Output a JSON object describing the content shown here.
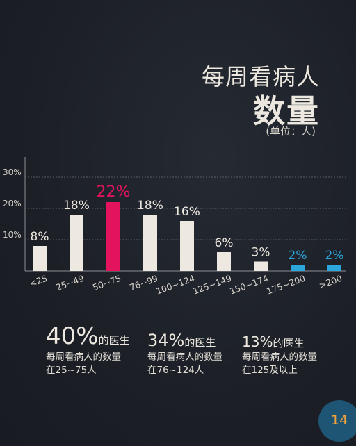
{
  "header": {
    "title_line1": "每周看病人",
    "title_line2": "数量",
    "unit": "(单位：人)"
  },
  "chart_data": {
    "type": "bar",
    "title": "每周看病人数量",
    "xlabel": "",
    "ylabel": "",
    "ylim": [
      0,
      30
    ],
    "yticks": [
      "10%",
      "20%",
      "30%"
    ],
    "categories": [
      "<25",
      "25~49",
      "50~75",
      "76~99",
      "100~124",
      "125~149",
      "150~174",
      "175~200",
      ">200"
    ],
    "values": [
      8,
      18,
      22,
      18,
      16,
      6,
      3,
      2,
      2
    ],
    "data_labels": [
      "8%",
      "18%",
      "22%",
      "18%",
      "16%",
      "6%",
      "3%",
      "2%",
      "2%"
    ],
    "colors": {
      "default": "#ede9e0",
      "highlight": "#e3135d",
      "low": "#2da6dc",
      "grid": "#5a5d63",
      "axis": "#8b8d92"
    },
    "bar_color_keys": [
      "default",
      "default",
      "highlight",
      "default",
      "default",
      "default",
      "default",
      "low",
      "low"
    ],
    "grid": true,
    "legend": "none"
  },
  "stats": [
    {
      "value": "40%",
      "suffix": "的医生",
      "line1": "每周看病人的数量",
      "line2": "在25~75人"
    },
    {
      "value": "34%",
      "suffix": "的医生",
      "line1": "每周看病人的数量",
      "line2": "在76~124人"
    },
    {
      "value": "13%",
      "suffix": "的医生",
      "line1": "每周看病人的数量",
      "line2": "在125及以上"
    }
  ],
  "page": {
    "number": "14",
    "accent": "#f4a23c",
    "badge": "#1e5574"
  }
}
